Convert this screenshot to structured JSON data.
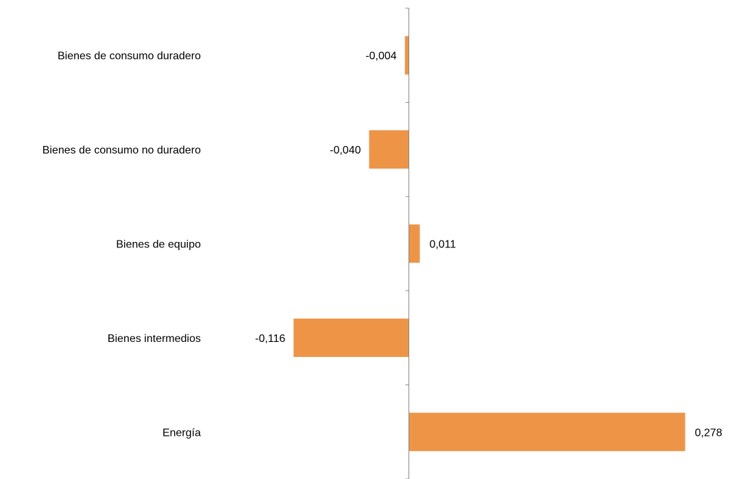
{
  "chart_data": {
    "type": "bar",
    "orientation": "horizontal",
    "categories": [
      "Bienes de consumo duradero",
      "Bienes de consumo no duradero",
      "Bienes de equipo",
      "Bienes intermedios",
      "Energía"
    ],
    "values": [
      -0.004,
      -0.04,
      0.011,
      -0.116,
      0.278
    ],
    "value_labels": [
      "-0,004",
      "-0,040",
      "0,011",
      "-0,116",
      "0,278"
    ],
    "bar_color": "#ED9447",
    "axis_color": "#868686",
    "xlim": [
      -0.116,
      0.278
    ],
    "grid": false,
    "legend": "none"
  }
}
